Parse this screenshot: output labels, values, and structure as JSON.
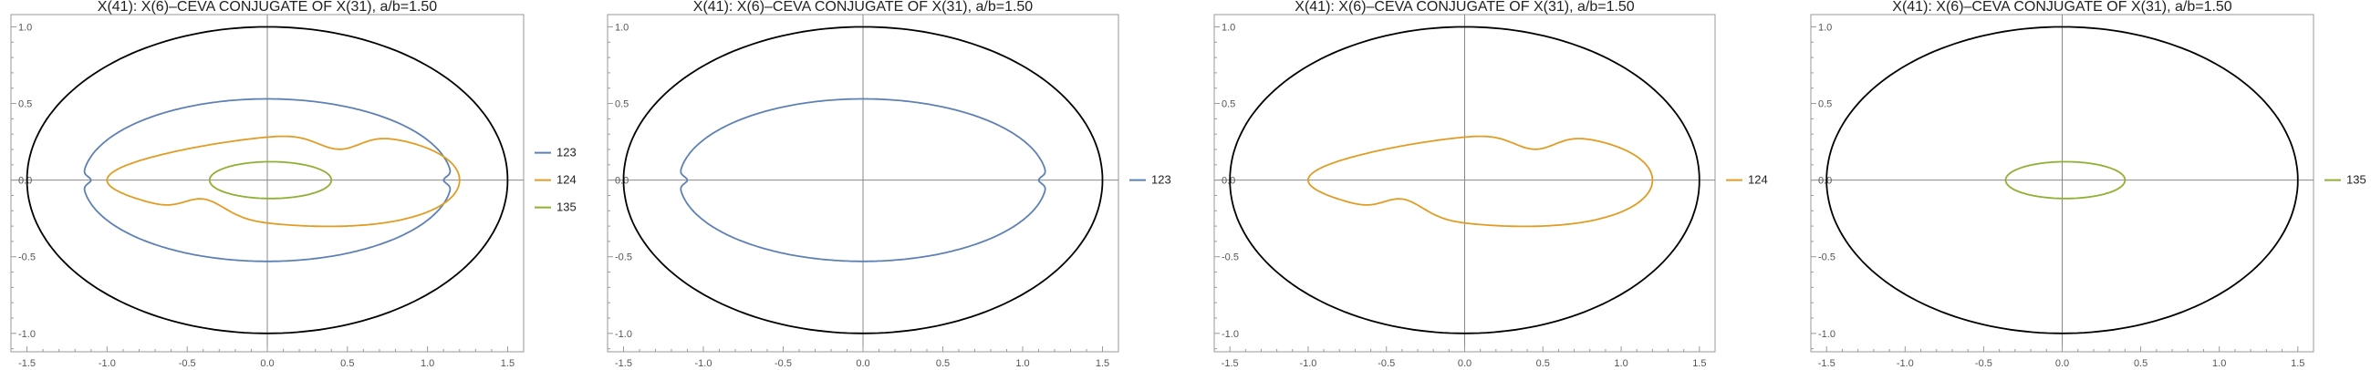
{
  "chart_data": [
    {
      "type": "line",
      "title": "X(41): X(6)–CEVA CONJUGATE OF X(31), a/b=1.50",
      "xlabel": "",
      "ylabel": "",
      "xlim": [
        -1.6,
        1.6
      ],
      "ylim": [
        -1.12,
        1.08
      ],
      "xticks": [
        "-1.5",
        "-1.0",
        "-0.5",
        "0.0",
        "0.5",
        "1.0",
        "1.5"
      ],
      "yticks": [
        "-1.0",
        "-0.5",
        "0.0",
        "0.5",
        "1.0"
      ],
      "grid": false,
      "legend_position": "right",
      "series": [
        {
          "name": "123",
          "color": "#5e81b5",
          "shape": "ellipse-notched",
          "center": [
            0,
            0
          ],
          "rx": 1.15,
          "ry": 0.53
        },
        {
          "name": "124",
          "color": "#e19c24",
          "shape": "cardioid-like",
          "center": [
            0.1,
            0
          ],
          "rx": 1.1,
          "ry": 0.3
        },
        {
          "name": "135",
          "color": "#8fb032",
          "shape": "ellipse",
          "center": [
            0.02,
            0
          ],
          "rx": 0.38,
          "ry": 0.12
        }
      ],
      "outline": {
        "color": "#000000",
        "shape": "ellipse",
        "center": [
          0,
          0
        ],
        "rx": 1.5,
        "ry": 1.0
      }
    },
    {
      "type": "line",
      "title": "X(41): X(6)–CEVA CONJUGATE OF X(31), a/b=1.50",
      "xlabel": "",
      "ylabel": "",
      "xlim": [
        -1.6,
        1.6
      ],
      "ylim": [
        -1.12,
        1.08
      ],
      "xticks": [
        "-1.5",
        "-1.0",
        "-0.5",
        "0.0",
        "0.5",
        "1.0",
        "1.5"
      ],
      "yticks": [
        "-1.0",
        "-0.5",
        "0.0",
        "0.5",
        "1.0"
      ],
      "grid": false,
      "legend_position": "right",
      "series": [
        {
          "name": "123",
          "color": "#5e81b5",
          "shape": "ellipse-notched",
          "center": [
            0,
            0
          ],
          "rx": 1.15,
          "ry": 0.53
        }
      ],
      "outline": {
        "color": "#000000",
        "shape": "ellipse",
        "center": [
          0,
          0
        ],
        "rx": 1.5,
        "ry": 1.0
      }
    },
    {
      "type": "line",
      "title": "X(41): X(6)–CEVA CONJUGATE OF X(31), a/b=1.50",
      "xlabel": "",
      "ylabel": "",
      "xlim": [
        -1.6,
        1.6
      ],
      "ylim": [
        -1.12,
        1.08
      ],
      "xticks": [
        "-1.5",
        "-1.0",
        "-0.5",
        "0.0",
        "0.5",
        "1.0",
        "1.5"
      ],
      "yticks": [
        "-1.0",
        "-0.5",
        "0.0",
        "0.5",
        "1.0"
      ],
      "grid": false,
      "legend_position": "right",
      "series": [
        {
          "name": "124",
          "color": "#e19c24",
          "shape": "cardioid-like",
          "center": [
            0.1,
            0
          ],
          "rx": 1.1,
          "ry": 0.3
        }
      ],
      "outline": {
        "color": "#000000",
        "shape": "ellipse",
        "center": [
          0,
          0
        ],
        "rx": 1.5,
        "ry": 1.0
      }
    },
    {
      "type": "line",
      "title": "X(41): X(6)–CEVA CONJUGATE OF X(31), a/b=1.50",
      "xlabel": "",
      "ylabel": "",
      "xlim": [
        -1.6,
        1.6
      ],
      "ylim": [
        -1.12,
        1.08
      ],
      "xticks": [
        "-1.5",
        "-1.0",
        "-0.5",
        "0.0",
        "0.5",
        "1.0",
        "1.5"
      ],
      "yticks": [
        "-1.0",
        "-0.5",
        "0.0",
        "0.5",
        "1.0"
      ],
      "grid": false,
      "legend_position": "right",
      "series": [
        {
          "name": "135",
          "color": "#8fb032",
          "shape": "ellipse",
          "center": [
            0.02,
            0
          ],
          "rx": 0.38,
          "ry": 0.12
        }
      ],
      "outline": {
        "color": "#000000",
        "shape": "ellipse",
        "center": [
          0,
          0
        ],
        "rx": 1.5,
        "ry": 1.0
      }
    }
  ]
}
